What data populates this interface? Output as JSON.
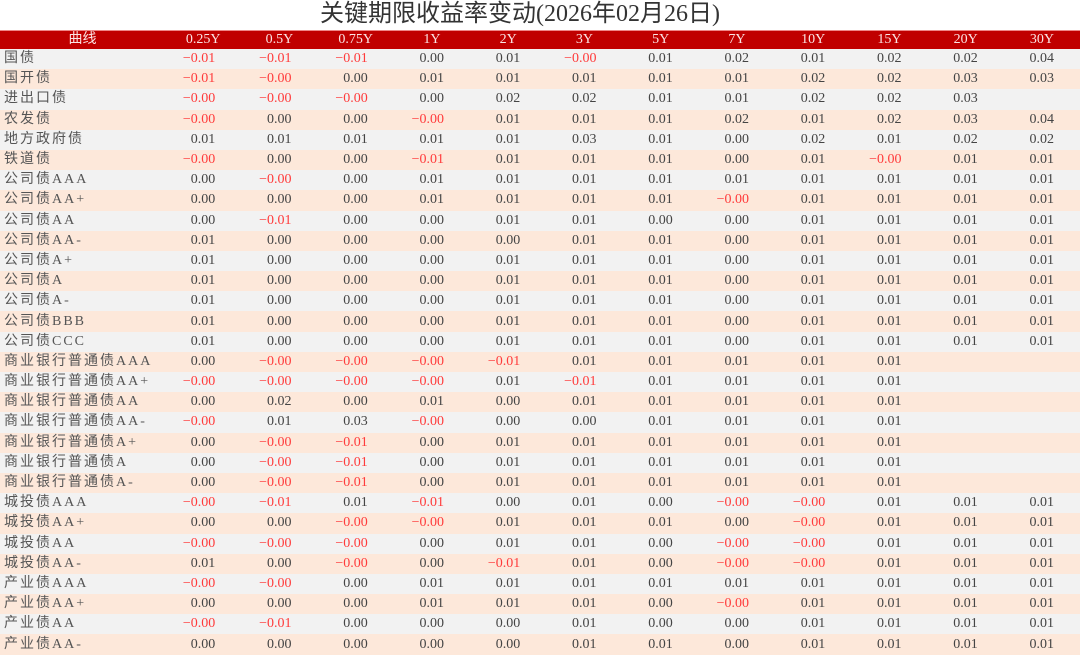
{
  "chart_data": {
    "type": "table",
    "title": "关键期限收益率变动(2026年02月26日)",
    "columns": [
      "曲线",
      "0.25Y",
      "0.5Y",
      "0.75Y",
      "1Y",
      "2Y",
      "3Y",
      "5Y",
      "7Y",
      "10Y",
      "15Y",
      "20Y",
      "30Y"
    ],
    "negative_color": "#ff3b3b",
    "header_color": "#c00000",
    "rows": [
      {
        "name": "国债",
        "values": [
          "-0.01",
          "-0.01",
          "-0.01",
          "0.00",
          "0.01",
          "-0.00",
          "0.01",
          "0.02",
          "0.01",
          "0.02",
          "0.02",
          "0.04"
        ]
      },
      {
        "name": "国开债",
        "values": [
          "-0.01",
          "-0.00",
          "0.00",
          "0.01",
          "0.01",
          "0.01",
          "0.01",
          "0.01",
          "0.02",
          "0.02",
          "0.03",
          "0.03"
        ]
      },
      {
        "name": "进出口债",
        "values": [
          "-0.00",
          "-0.00",
          "-0.00",
          "0.00",
          "0.02",
          "0.02",
          "0.01",
          "0.01",
          "0.02",
          "0.02",
          "0.03",
          ""
        ]
      },
      {
        "name": "农发债",
        "values": [
          "-0.00",
          "0.00",
          "0.00",
          "-0.00",
          "0.01",
          "0.01",
          "0.01",
          "0.02",
          "0.01",
          "0.02",
          "0.03",
          "0.04"
        ]
      },
      {
        "name": "地方政府债",
        "values": [
          "0.01",
          "0.01",
          "0.01",
          "0.01",
          "0.01",
          "0.03",
          "0.01",
          "0.00",
          "0.02",
          "0.01",
          "0.02",
          "0.02"
        ]
      },
      {
        "name": "铁道债",
        "values": [
          "-0.00",
          "0.00",
          "0.00",
          "-0.01",
          "0.01",
          "0.01",
          "0.01",
          "0.00",
          "0.01",
          "-0.00",
          "0.01",
          "0.01"
        ]
      },
      {
        "name": "公司债AAA",
        "values": [
          "0.00",
          "-0.00",
          "0.00",
          "0.01",
          "0.01",
          "0.01",
          "0.01",
          "0.01",
          "0.01",
          "0.01",
          "0.01",
          "0.01"
        ]
      },
      {
        "name": "公司债AA+",
        "values": [
          "0.00",
          "0.00",
          "0.00",
          "0.01",
          "0.01",
          "0.01",
          "0.01",
          "-0.00",
          "0.01",
          "0.01",
          "0.01",
          "0.01"
        ]
      },
      {
        "name": "公司债AA",
        "values": [
          "0.00",
          "-0.01",
          "0.00",
          "0.00",
          "0.01",
          "0.01",
          "0.00",
          "0.00",
          "0.01",
          "0.01",
          "0.01",
          "0.01"
        ]
      },
      {
        "name": "公司债AA-",
        "values": [
          "0.01",
          "0.00",
          "0.00",
          "0.00",
          "0.00",
          "0.01",
          "0.01",
          "0.00",
          "0.01",
          "0.01",
          "0.01",
          "0.01"
        ]
      },
      {
        "name": "公司债A+",
        "values": [
          "0.01",
          "0.00",
          "0.00",
          "0.00",
          "0.01",
          "0.01",
          "0.01",
          "0.00",
          "0.01",
          "0.01",
          "0.01",
          "0.01"
        ]
      },
      {
        "name": "公司债A",
        "values": [
          "0.01",
          "0.00",
          "0.00",
          "0.00",
          "0.01",
          "0.01",
          "0.01",
          "0.00",
          "0.01",
          "0.01",
          "0.01",
          "0.01"
        ]
      },
      {
        "name": "公司债A-",
        "values": [
          "0.01",
          "0.00",
          "0.00",
          "0.00",
          "0.01",
          "0.01",
          "0.01",
          "0.00",
          "0.01",
          "0.01",
          "0.01",
          "0.01"
        ]
      },
      {
        "name": "公司债BBB",
        "values": [
          "0.01",
          "0.00",
          "0.00",
          "0.00",
          "0.01",
          "0.01",
          "0.01",
          "0.00",
          "0.01",
          "0.01",
          "0.01",
          "0.01"
        ]
      },
      {
        "name": "公司债CCC",
        "values": [
          "0.01",
          "0.00",
          "0.00",
          "0.00",
          "0.01",
          "0.01",
          "0.01",
          "0.00",
          "0.01",
          "0.01",
          "0.01",
          "0.01"
        ]
      },
      {
        "name": "商业银行普通债AAA",
        "values": [
          "0.00",
          "-0.00",
          "-0.00",
          "-0.00",
          "-0.01",
          "0.01",
          "0.01",
          "0.01",
          "0.01",
          "0.01",
          "",
          ""
        ]
      },
      {
        "name": "商业银行普通债AA+",
        "values": [
          "-0.00",
          "-0.00",
          "-0.00",
          "-0.00",
          "0.01",
          "-0.01",
          "0.01",
          "0.01",
          "0.01",
          "0.01",
          "",
          ""
        ]
      },
      {
        "name": "商业银行普通债AA",
        "values": [
          "0.00",
          "0.02",
          "0.00",
          "0.01",
          "0.00",
          "0.01",
          "0.01",
          "0.01",
          "0.01",
          "0.01",
          "",
          ""
        ]
      },
      {
        "name": "商业银行普通债AA-",
        "values": [
          "-0.00",
          "0.01",
          "0.03",
          "-0.00",
          "0.00",
          "0.00",
          "0.01",
          "0.01",
          "0.01",
          "0.01",
          "",
          ""
        ]
      },
      {
        "name": "商业银行普通债A+",
        "values": [
          "0.00",
          "-0.00",
          "-0.01",
          "0.00",
          "0.01",
          "0.01",
          "0.01",
          "0.01",
          "0.01",
          "0.01",
          "",
          ""
        ]
      },
      {
        "name": "商业银行普通债A",
        "values": [
          "0.00",
          "-0.00",
          "-0.01",
          "0.00",
          "0.01",
          "0.01",
          "0.01",
          "0.01",
          "0.01",
          "0.01",
          "",
          ""
        ]
      },
      {
        "name": "商业银行普通债A-",
        "values": [
          "0.00",
          "-0.00",
          "-0.01",
          "0.00",
          "0.01",
          "0.01",
          "0.01",
          "0.01",
          "0.01",
          "0.01",
          "",
          ""
        ]
      },
      {
        "name": "城投债AAA",
        "values": [
          "-0.00",
          "-0.01",
          "0.01",
          "-0.01",
          "0.00",
          "0.01",
          "0.00",
          "-0.00",
          "-0.00",
          "0.01",
          "0.01",
          "0.01"
        ]
      },
      {
        "name": "城投债AA+",
        "values": [
          "0.00",
          "0.00",
          "-0.00",
          "-0.00",
          "0.01",
          "0.01",
          "0.01",
          "0.00",
          "-0.00",
          "0.01",
          "0.01",
          "0.01"
        ]
      },
      {
        "name": "城投债AA",
        "values": [
          "-0.00",
          "-0.00",
          "-0.00",
          "0.00",
          "0.01",
          "0.01",
          "0.00",
          "-0.00",
          "-0.00",
          "0.01",
          "0.01",
          "0.01"
        ]
      },
      {
        "name": "城投债AA-",
        "values": [
          "0.01",
          "0.00",
          "-0.00",
          "0.00",
          "-0.01",
          "0.01",
          "0.00",
          "-0.00",
          "-0.00",
          "0.01",
          "0.01",
          "0.01"
        ]
      },
      {
        "name": "产业债AAA",
        "values": [
          "-0.00",
          "-0.00",
          "0.00",
          "0.01",
          "0.01",
          "0.01",
          "0.01",
          "0.01",
          "0.01",
          "0.01",
          "0.01",
          "0.01"
        ]
      },
      {
        "name": "产业债AA+",
        "values": [
          "0.00",
          "0.00",
          "0.00",
          "0.01",
          "0.01",
          "0.01",
          "0.00",
          "-0.00",
          "0.01",
          "0.01",
          "0.01",
          "0.01"
        ]
      },
      {
        "name": "产业债AA",
        "values": [
          "-0.00",
          "-0.01",
          "0.00",
          "0.00",
          "0.00",
          "0.01",
          "0.00",
          "0.00",
          "0.01",
          "0.01",
          "0.01",
          "0.01"
        ]
      },
      {
        "name": "产业债AA-",
        "values": [
          "0.00",
          "0.00",
          "0.00",
          "0.00",
          "0.00",
          "0.01",
          "0.01",
          "0.00",
          "0.01",
          "0.01",
          "0.01",
          "0.01"
        ]
      }
    ]
  }
}
